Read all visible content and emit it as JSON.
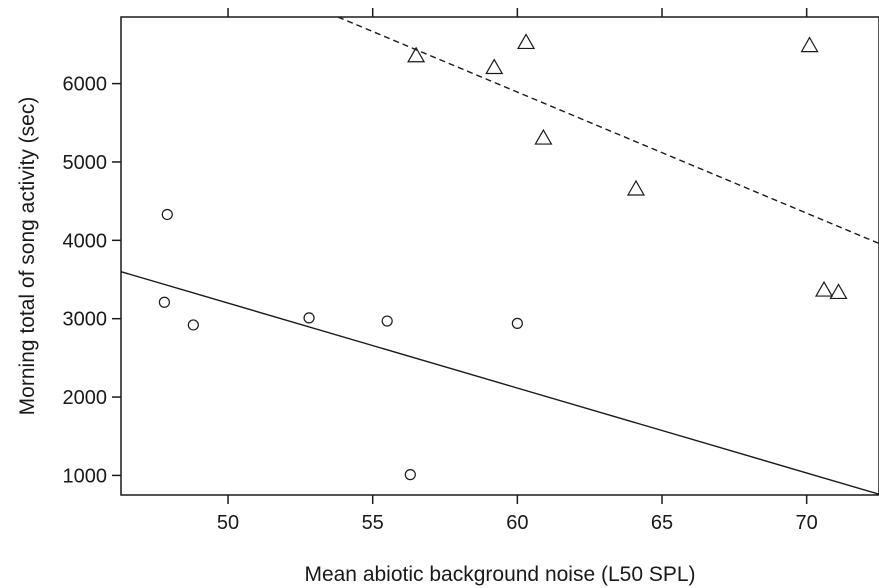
{
  "chart_data": {
    "type": "scatter",
    "title": "",
    "xlabel": "Mean abiotic background noise (L50 SPL)",
    "ylabel": "Morning total of song activity (sec)",
    "xlim": [
      46.3,
      72.5
    ],
    "ylim": [
      750,
      6850
    ],
    "xticks": [
      50,
      55,
      60,
      65,
      70
    ],
    "yticks": [
      1000,
      2000,
      3000,
      4000,
      5000,
      6000
    ],
    "grid": false,
    "legend": "none",
    "series": [
      {
        "marker": "circle",
        "points": [
          {
            "x": 47.9,
            "y": 4330
          },
          {
            "x": 47.8,
            "y": 3210
          },
          {
            "x": 48.8,
            "y": 2920
          },
          {
            "x": 52.8,
            "y": 3010
          },
          {
            "x": 55.5,
            "y": 2970
          },
          {
            "x": 60.0,
            "y": 2940
          },
          {
            "x": 56.3,
            "y": 1010
          }
        ],
        "fit": {
          "style": "solid",
          "x": [
            46.3,
            72.5
          ],
          "y": [
            3600,
            760
          ]
        }
      },
      {
        "marker": "triangle",
        "points": [
          {
            "x": 56.5,
            "y": 6350
          },
          {
            "x": 59.2,
            "y": 6200
          },
          {
            "x": 60.3,
            "y": 6520
          },
          {
            "x": 60.9,
            "y": 5300
          },
          {
            "x": 64.1,
            "y": 4650
          },
          {
            "x": 70.1,
            "y": 6480
          },
          {
            "x": 70.6,
            "y": 3360
          },
          {
            "x": 71.1,
            "y": 3330
          }
        ],
        "fit": {
          "style": "dashed",
          "x": [
            53.8,
            72.5
          ],
          "y": [
            6850,
            3960
          ]
        }
      }
    ]
  }
}
